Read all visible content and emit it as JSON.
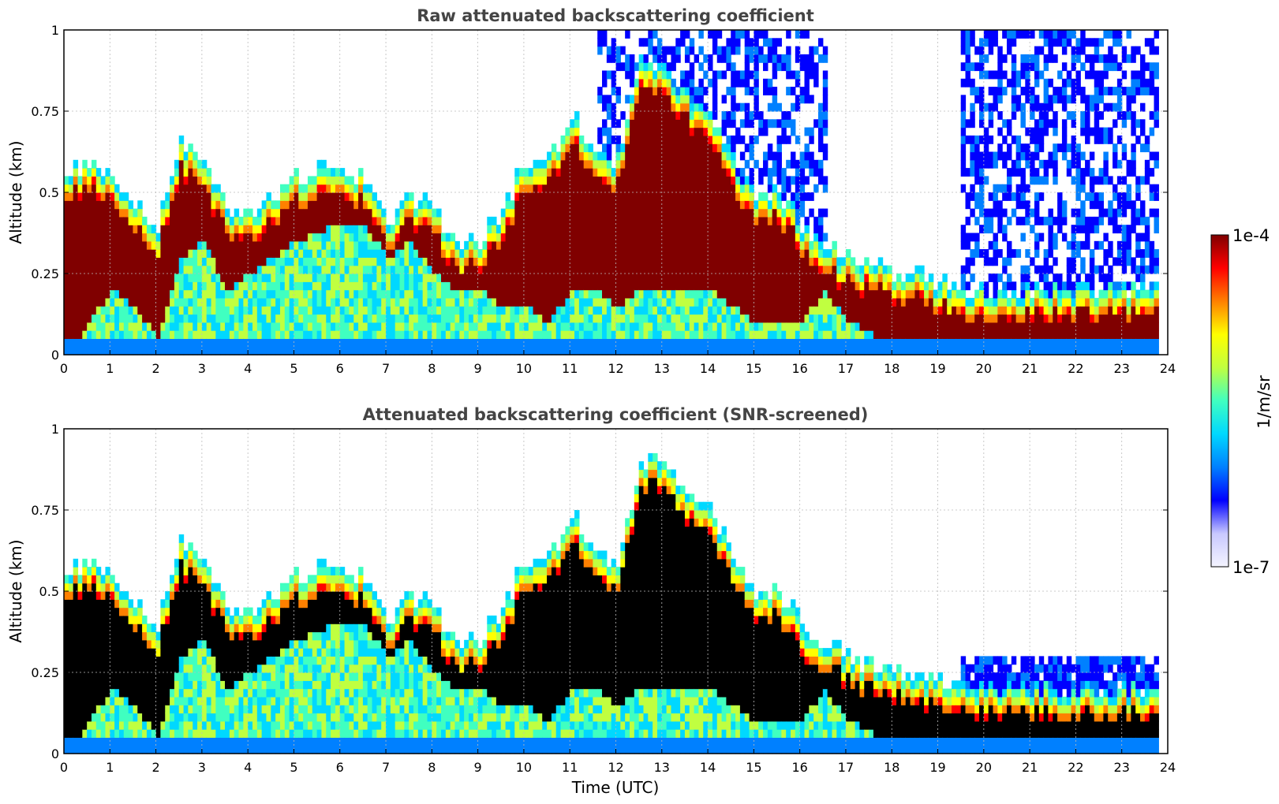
{
  "chart_data": [
    {
      "type": "heatmap",
      "title": "Raw attenuated backscattering coefficient",
      "xlabel": "",
      "ylabel": "Altitude (km)",
      "xlim": [
        0,
        24
      ],
      "ylim": [
        0,
        1
      ],
      "x_ticks": [
        "0",
        "1",
        "2",
        "3",
        "4",
        "5",
        "6",
        "7",
        "8",
        "9",
        "10",
        "11",
        "12",
        "13",
        "14",
        "15",
        "16",
        "17",
        "18",
        "19",
        "20",
        "21",
        "22",
        "23",
        "24"
      ],
      "y_ticks": [
        "0",
        "0.25",
        "0.5",
        "0.75",
        "1"
      ],
      "grid": true,
      "profile": {
        "time_utc": [
          0,
          0.5,
          1,
          1.5,
          2,
          2.5,
          3,
          3.5,
          4,
          4.5,
          5,
          5.5,
          6,
          6.5,
          7,
          7.5,
          8,
          8.5,
          9,
          9.5,
          10,
          10.5,
          11,
          11.5,
          12,
          12.5,
          13,
          13.5,
          14,
          14.5,
          15,
          15.5,
          16,
          16.5,
          17,
          17.5,
          18,
          18.5,
          19,
          19.5,
          20,
          21,
          22,
          23,
          23.8
        ],
        "layer_top_km": [
          0.55,
          0.6,
          0.55,
          0.45,
          0.4,
          0.65,
          0.6,
          0.45,
          0.45,
          0.5,
          0.55,
          0.57,
          0.57,
          0.55,
          0.4,
          0.5,
          0.45,
          0.35,
          0.35,
          0.45,
          0.6,
          0.6,
          0.75,
          0.6,
          0.6,
          0.9,
          0.9,
          0.8,
          0.75,
          0.6,
          0.5,
          0.5,
          0.4,
          0.35,
          0.3,
          0.28,
          0.25,
          0.25,
          0.22,
          0.2,
          0.2,
          0.2,
          0.2,
          0.2,
          0.2
        ],
        "layer_base_km": [
          0.0,
          0.1,
          0.2,
          0.15,
          0.05,
          0.3,
          0.35,
          0.2,
          0.25,
          0.3,
          0.35,
          0.38,
          0.4,
          0.4,
          0.3,
          0.35,
          0.25,
          0.2,
          0.2,
          0.15,
          0.15,
          0.1,
          0.2,
          0.2,
          0.15,
          0.2,
          0.2,
          0.2,
          0.2,
          0.15,
          0.1,
          0.1,
          0.1,
          0.2,
          0.1,
          0.07,
          0.03,
          0.05,
          0.05,
          0.05,
          0.05,
          0.05,
          0.05,
          0.05,
          0.05
        ]
      }
    },
    {
      "type": "heatmap",
      "title": "Attenuated backscattering coefficient (SNR-screened)",
      "xlabel": "Time (UTC)",
      "ylabel": "Altitude (km)",
      "xlim": [
        0,
        24
      ],
      "ylim": [
        0,
        1
      ],
      "x_ticks": [
        "0",
        "1",
        "2",
        "3",
        "4",
        "5",
        "6",
        "7",
        "8",
        "9",
        "10",
        "11",
        "12",
        "13",
        "14",
        "15",
        "16",
        "17",
        "18",
        "19",
        "20",
        "21",
        "22",
        "23",
        "24"
      ],
      "y_ticks": [
        "0",
        "0.25",
        "0.5",
        "0.75",
        "1"
      ],
      "grid": true,
      "screened_noise_top_km": 0.3
    }
  ],
  "colorbar": {
    "label": "1/m/sr",
    "max_label": "1e-4",
    "min_label": "1e-7",
    "colormap": [
      "#f4f4ff",
      "#c8c8ff",
      "#0000ff",
      "#0080ff",
      "#00d8ff",
      "#40ffc0",
      "#c0ff40",
      "#ffff00",
      "#ff8000",
      "#ff0000",
      "#800000"
    ]
  }
}
